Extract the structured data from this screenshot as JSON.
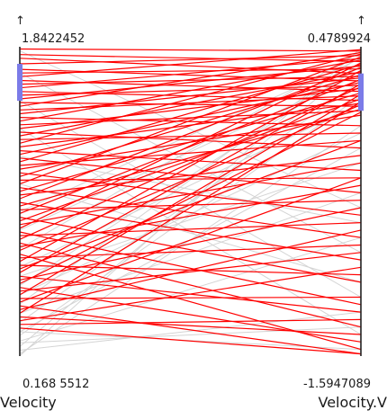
{
  "chart_data": {
    "type": "parallel-coordinates",
    "axes": [
      {
        "name": "Velocity",
        "max": 1.8422452,
        "min": 0.1685512,
        "max_label": "1.8422452",
        "min_label": "0.168 5512",
        "brush_range": [
          1.55,
          1.75
        ]
      },
      {
        "name": "Velocity.V",
        "max": 0.4789924,
        "min": -1.5947089,
        "max_label": "0.4789924",
        "min_label": "-1.5947089",
        "brush_range": [
          0.05,
          0.3
        ]
      }
    ],
    "axis_arrow": "↑",
    "colors": {
      "selected": "#ff0000",
      "context": "#d4d4d4",
      "brush": "#7b7be8",
      "axis": "#222222"
    },
    "selected_lines": [
      [
        1.83,
        0.45
      ],
      [
        1.8,
        0.38
      ],
      [
        1.78,
        0.3
      ],
      [
        1.75,
        0.42
      ],
      [
        1.72,
        0.25
      ],
      [
        1.7,
        0.33
      ],
      [
        1.68,
        0.46
      ],
      [
        1.66,
        0.18
      ],
      [
        1.64,
        0.28
      ],
      [
        1.62,
        0.4
      ],
      [
        1.6,
        0.12
      ],
      [
        1.58,
        0.22
      ],
      [
        1.56,
        0.35
      ],
      [
        1.54,
        0.08
      ],
      [
        1.52,
        0.44
      ],
      [
        1.5,
        0.15
      ],
      [
        1.48,
        0.27
      ],
      [
        1.46,
        -0.05
      ],
      [
        1.44,
        0.39
      ],
      [
        1.42,
        0.05
      ],
      [
        1.4,
        0.2
      ],
      [
        1.38,
        -0.2
      ],
      [
        1.36,
        0.31
      ],
      [
        1.34,
        -0.1
      ],
      [
        1.32,
        0.43
      ],
      [
        1.3,
        0.1
      ],
      [
        1.28,
        -0.35
      ],
      [
        1.26,
        0.24
      ],
      [
        1.24,
        -0.5
      ],
      [
        1.22,
        0.36
      ],
      [
        1.2,
        -0.15
      ],
      [
        1.18,
        0.02
      ],
      [
        1.16,
        -0.65
      ],
      [
        1.14,
        0.29
      ],
      [
        1.12,
        -0.4
      ],
      [
        1.1,
        0.41
      ],
      [
        1.08,
        -0.8
      ],
      [
        1.06,
        0.17
      ],
      [
        1.04,
        -0.25
      ],
      [
        1.02,
        0.34
      ],
      [
        1.0,
        -0.95
      ],
      [
        0.98,
        0.06
      ],
      [
        0.96,
        -0.55
      ],
      [
        0.94,
        0.26
      ],
      [
        0.92,
        -1.1
      ],
      [
        0.9,
        0.13
      ],
      [
        0.88,
        -0.3
      ],
      [
        0.86,
        0.37
      ],
      [
        0.84,
        -1.25
      ],
      [
        0.82,
        -0.7
      ],
      [
        0.8,
        0.21
      ],
      [
        0.78,
        -1.4
      ],
      [
        0.76,
        -0.45
      ],
      [
        0.74,
        0.09
      ],
      [
        0.72,
        -1.55
      ],
      [
        0.7,
        -0.85
      ],
      [
        0.68,
        0.32
      ],
      [
        0.66,
        -1.05
      ],
      [
        0.64,
        -0.15
      ],
      [
        0.62,
        0.23
      ],
      [
        0.6,
        -1.3
      ],
      [
        0.58,
        -0.6
      ],
      [
        0.56,
        0.04
      ],
      [
        0.54,
        -1.5
      ],
      [
        0.52,
        -0.9
      ],
      [
        0.5,
        0.16
      ],
      [
        0.48,
        -1.2
      ],
      [
        0.46,
        -0.4
      ],
      [
        0.44,
        -1.58
      ],
      [
        0.42,
        -0.75
      ],
      [
        0.4,
        0.11
      ],
      [
        0.38,
        -1.45
      ],
      [
        0.36,
        -1.0
      ],
      [
        0.34,
        -1.35
      ],
      [
        0.32,
        -1.58
      ]
    ],
    "context_lines": [
      [
        1.82,
        -0.6
      ],
      [
        1.7,
        -0.9
      ],
      [
        1.55,
        -1.2
      ],
      [
        1.4,
        -1.45
      ],
      [
        1.25,
        -0.7
      ],
      [
        1.1,
        -1.1
      ],
      [
        0.95,
        0.4
      ],
      [
        0.85,
        0.3
      ],
      [
        0.75,
        0.45
      ],
      [
        0.65,
        0.1
      ],
      [
        0.6,
        -0.3
      ],
      [
        0.55,
        0.35
      ],
      [
        0.5,
        -0.1
      ],
      [
        0.45,
        0.42
      ],
      [
        0.4,
        -0.5
      ],
      [
        0.35,
        0.25
      ],
      [
        0.3,
        -0.2
      ],
      [
        0.28,
        0.15
      ],
      [
        0.25,
        -0.8
      ],
      [
        0.22,
        0.38
      ],
      [
        0.2,
        -1.3
      ],
      [
        0.18,
        -0.05
      ],
      [
        0.17,
        0.47
      ],
      [
        0.3,
        -1.55
      ],
      [
        0.24,
        -1.4
      ]
    ]
  }
}
